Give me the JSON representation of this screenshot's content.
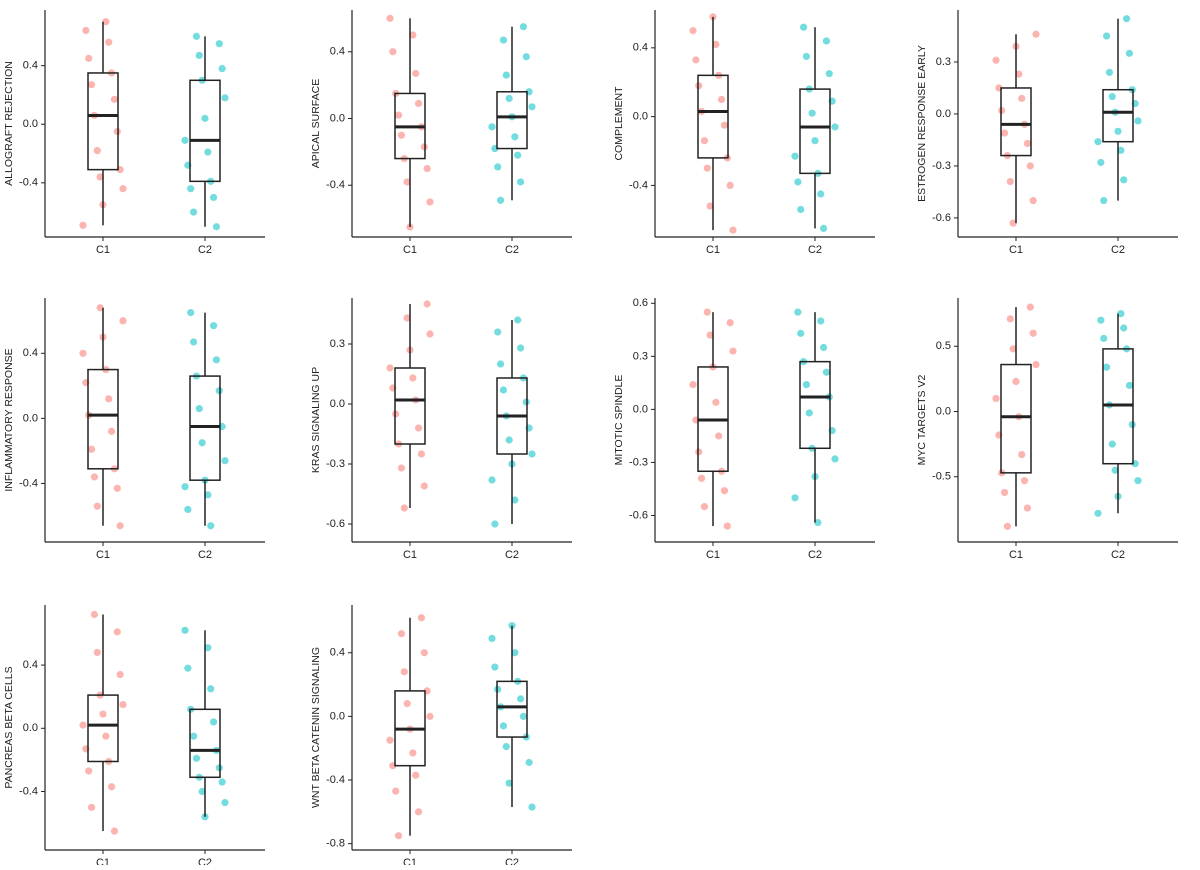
{
  "chart_data": [
    {
      "type": "box",
      "ylabel": "ALLOGRAFT REJECTION",
      "categories": [
        "C1",
        "C2"
      ],
      "ylim": [
        -0.77,
        0.78
      ],
      "yticks": [
        -0.4,
        {
          "value": 0,
          "label": "0.0"
        },
        0.4
      ],
      "boxes": [
        {
          "color": "#F8766D",
          "min": -0.69,
          "q1": -0.31,
          "median": 0.06,
          "q3": 0.35,
          "max": 0.7,
          "points": [
            -0.69,
            -0.55,
            -0.44,
            -0.36,
            -0.31,
            -0.18,
            -0.05,
            0.06,
            0.17,
            0.27,
            0.35,
            0.45,
            0.56,
            0.64,
            0.7
          ]
        },
        {
          "color": "#00BFC4",
          "min": -0.7,
          "q1": -0.39,
          "median": -0.11,
          "q3": 0.3,
          "max": 0.6,
          "points": [
            -0.7,
            -0.6,
            -0.5,
            -0.44,
            -0.39,
            -0.28,
            -0.19,
            -0.11,
            0.04,
            0.18,
            0.3,
            0.38,
            0.47,
            0.55,
            0.6
          ]
        }
      ]
    },
    {
      "type": "box",
      "ylabel": "APICAL SURFACE",
      "categories": [
        "C1",
        "C2"
      ],
      "ylim": [
        -0.71,
        0.65
      ],
      "yticks": [
        -0.4,
        {
          "value": 0,
          "label": "0.0"
        },
        0.4
      ],
      "boxes": [
        {
          "color": "#F8766D",
          "min": -0.65,
          "q1": -0.24,
          "median": -0.05,
          "q3": 0.15,
          "max": 0.6,
          "points": [
            -0.65,
            -0.5,
            -0.38,
            -0.3,
            -0.24,
            -0.17,
            -0.1,
            -0.05,
            0.02,
            0.09,
            0.15,
            0.27,
            0.4,
            0.5,
            0.6
          ]
        },
        {
          "color": "#00BFC4",
          "min": -0.49,
          "q1": -0.18,
          "median": 0.01,
          "q3": 0.16,
          "max": 0.55,
          "points": [
            -0.49,
            -0.38,
            -0.29,
            -0.22,
            -0.18,
            -0.11,
            -0.05,
            0.01,
            0.07,
            0.12,
            0.16,
            0.26,
            0.37,
            0.47,
            0.55
          ]
        }
      ]
    },
    {
      "type": "box",
      "ylabel": "COMPLEMENT",
      "categories": [
        "C1",
        "C2"
      ],
      "ylim": [
        -0.7,
        0.62
      ],
      "yticks": [
        -0.4,
        {
          "value": 0,
          "label": "0.0"
        },
        0.4
      ],
      "boxes": [
        {
          "color": "#F8766D",
          "min": -0.66,
          "q1": -0.24,
          "median": 0.03,
          "q3": 0.24,
          "max": 0.58,
          "points": [
            -0.66,
            -0.52,
            -0.4,
            -0.3,
            -0.24,
            -0.14,
            -0.05,
            0.03,
            0.1,
            0.18,
            0.24,
            0.33,
            0.42,
            0.5,
            0.58
          ]
        },
        {
          "color": "#00BFC4",
          "min": -0.65,
          "q1": -0.33,
          "median": -0.06,
          "q3": 0.16,
          "max": 0.52,
          "points": [
            -0.65,
            -0.54,
            -0.45,
            -0.38,
            -0.33,
            -0.23,
            -0.14,
            -0.06,
            0.02,
            0.09,
            0.16,
            0.25,
            0.35,
            0.44,
            0.52
          ]
        }
      ]
    },
    {
      "type": "box",
      "ylabel": "ESTROGEN RESPONSE EARLY",
      "categories": [
        "C1",
        "C2"
      ],
      "ylim": [
        -0.71,
        0.6
      ],
      "yticks": [
        -0.6,
        -0.3,
        {
          "value": 0,
          "label": "0.0"
        },
        0.3
      ],
      "boxes": [
        {
          "color": "#F8766D",
          "min": -0.63,
          "q1": -0.24,
          "median": -0.06,
          "q3": 0.15,
          "max": 0.46,
          "points": [
            -0.63,
            -0.5,
            -0.39,
            -0.3,
            -0.24,
            -0.17,
            -0.11,
            -0.06,
            0.02,
            0.09,
            0.15,
            0.23,
            0.31,
            0.39,
            0.46
          ]
        },
        {
          "color": "#00BFC4",
          "min": -0.5,
          "q1": -0.16,
          "median": 0.01,
          "q3": 0.14,
          "max": 0.55,
          "points": [
            -0.5,
            -0.38,
            -0.28,
            -0.21,
            -0.16,
            -0.1,
            -0.04,
            0.01,
            0.06,
            0.1,
            0.14,
            0.24,
            0.35,
            0.45,
            0.55
          ]
        }
      ]
    },
    {
      "type": "box",
      "ylabel": "INFLAMMATORY RESPONSE",
      "categories": [
        "C1",
        "C2"
      ],
      "ylim": [
        -0.76,
        0.74
      ],
      "yticks": [
        -0.4,
        {
          "value": 0,
          "label": "0.0"
        },
        0.4
      ],
      "boxes": [
        {
          "color": "#F8766D",
          "min": -0.66,
          "q1": -0.31,
          "median": 0.02,
          "q3": 0.3,
          "max": 0.68,
          "points": [
            -0.66,
            -0.54,
            -0.43,
            -0.36,
            -0.31,
            -0.19,
            -0.08,
            0.02,
            0.12,
            0.22,
            0.3,
            0.4,
            0.5,
            0.6,
            0.68
          ]
        },
        {
          "color": "#00BFC4",
          "min": -0.66,
          "q1": -0.38,
          "median": -0.05,
          "q3": 0.26,
          "max": 0.65,
          "points": [
            -0.66,
            -0.56,
            -0.47,
            -0.42,
            -0.38,
            -0.26,
            -0.15,
            -0.05,
            0.06,
            0.17,
            0.26,
            0.36,
            0.47,
            0.57,
            0.65
          ]
        }
      ]
    },
    {
      "type": "box",
      "ylabel": "KRAS SIGNALING UP",
      "categories": [
        "C1",
        "C2"
      ],
      "ylim": [
        -0.69,
        0.53
      ],
      "yticks": [
        -0.6,
        -0.3,
        {
          "value": 0,
          "label": "0.0"
        },
        0.3
      ],
      "boxes": [
        {
          "color": "#F8766D",
          "min": -0.52,
          "q1": -0.2,
          "median": 0.02,
          "q3": 0.18,
          "max": 0.5,
          "points": [
            -0.52,
            -0.41,
            -0.32,
            -0.25,
            -0.2,
            -0.12,
            -0.05,
            0.02,
            0.08,
            0.13,
            0.18,
            0.27,
            0.35,
            0.43,
            0.5
          ]
        },
        {
          "color": "#00BFC4",
          "min": -0.6,
          "q1": -0.25,
          "median": -0.06,
          "q3": 0.13,
          "max": 0.42,
          "points": [
            -0.6,
            -0.48,
            -0.38,
            -0.3,
            -0.25,
            -0.18,
            -0.12,
            -0.06,
            0.01,
            0.07,
            0.13,
            0.2,
            0.28,
            0.36,
            0.42
          ]
        }
      ]
    },
    {
      "type": "box",
      "ylabel": "MITOTIC SPINDLE",
      "categories": [
        "C1",
        "C2"
      ],
      "ylim": [
        -0.75,
        0.63
      ],
      "yticks": [
        -0.6,
        -0.3,
        {
          "value": 0,
          "label": "0.0"
        },
        0.3,
        0.6
      ],
      "boxes": [
        {
          "color": "#F8766D",
          "min": -0.66,
          "q1": -0.35,
          "median": -0.06,
          "q3": 0.24,
          "max": 0.55,
          "points": [
            -0.66,
            -0.55,
            -0.46,
            -0.39,
            -0.35,
            -0.24,
            -0.15,
            -0.06,
            0.04,
            0.14,
            0.24,
            0.33,
            0.42,
            0.49,
            0.55
          ]
        },
        {
          "color": "#00BFC4",
          "min": -0.64,
          "q1": -0.22,
          "median": 0.07,
          "q3": 0.27,
          "max": 0.55,
          "points": [
            -0.64,
            -0.5,
            -0.38,
            -0.28,
            -0.22,
            -0.12,
            -0.02,
            0.07,
            0.14,
            0.21,
            0.27,
            0.35,
            0.43,
            0.5,
            0.55
          ]
        }
      ]
    },
    {
      "type": "box",
      "ylabel": "MYC TARGETS V2",
      "categories": [
        "C1",
        "C2"
      ],
      "ylim": [
        -1.0,
        0.87
      ],
      "yticks": [
        -0.5,
        {
          "value": 0,
          "label": "0.0"
        },
        0.5
      ],
      "boxes": [
        {
          "color": "#F8766D",
          "min": -0.88,
          "q1": -0.47,
          "median": -0.04,
          "q3": 0.36,
          "max": 0.8,
          "points": [
            -0.88,
            -0.74,
            -0.62,
            -0.53,
            -0.47,
            -0.33,
            -0.18,
            -0.04,
            0.1,
            0.23,
            0.36,
            0.48,
            0.6,
            0.71,
            0.8
          ]
        },
        {
          "color": "#00BFC4",
          "min": -0.78,
          "q1": -0.4,
          "median": 0.05,
          "q3": 0.48,
          "max": 0.75,
          "points": [
            -0.78,
            -0.65,
            -0.53,
            -0.45,
            -0.4,
            -0.25,
            -0.1,
            0.05,
            0.2,
            0.34,
            0.48,
            0.56,
            0.64,
            0.7,
            0.75
          ]
        }
      ]
    },
    {
      "type": "box",
      "ylabel": "PANCREAS BETA CELLS",
      "categories": [
        "C1",
        "C2"
      ],
      "ylim": [
        -0.77,
        0.78
      ],
      "yticks": [
        -0.4,
        {
          "value": 0,
          "label": "0.0"
        },
        0.4
      ],
      "boxes": [
        {
          "color": "#F8766D",
          "min": -0.65,
          "q1": -0.21,
          "median": 0.02,
          "q3": 0.21,
          "max": 0.72,
          "points": [
            -0.65,
            -0.5,
            -0.37,
            -0.27,
            -0.21,
            -0.13,
            -0.05,
            0.02,
            0.09,
            0.15,
            0.21,
            0.34,
            0.48,
            0.61,
            0.72
          ]
        },
        {
          "color": "#00BFC4",
          "min": -0.56,
          "q1": -0.31,
          "median": -0.14,
          "q3": 0.12,
          "max": 0.62,
          "points": [
            -0.56,
            -0.47,
            -0.4,
            -0.34,
            -0.31,
            -0.25,
            -0.19,
            -0.14,
            -0.05,
            0.04,
            0.12,
            0.25,
            0.38,
            0.51,
            0.62
          ]
        }
      ]
    },
    {
      "type": "box",
      "ylabel": "WNT BETA CATENIN SIGNALING",
      "categories": [
        "C1",
        "C2"
      ],
      "ylim": [
        -0.84,
        0.7
      ],
      "yticks": [
        -0.8,
        -0.4,
        {
          "value": 0,
          "label": "0.0"
        },
        0.4
      ],
      "boxes": [
        {
          "color": "#F8766D",
          "min": -0.75,
          "q1": -0.31,
          "median": -0.08,
          "q3": 0.16,
          "max": 0.62,
          "points": [
            -0.75,
            -0.6,
            -0.47,
            -0.37,
            -0.31,
            -0.23,
            -0.15,
            -0.08,
            0,
            0.08,
            0.16,
            0.28,
            0.4,
            0.52,
            0.62
          ]
        },
        {
          "color": "#00BFC4",
          "min": -0.57,
          "q1": -0.13,
          "median": 0.06,
          "q3": 0.22,
          "max": 0.57,
          "points": [
            -0.57,
            -0.42,
            -0.29,
            -0.19,
            -0.13,
            -0.06,
            0,
            0.06,
            0.11,
            0.17,
            0.22,
            0.31,
            0.4,
            0.49,
            0.57
          ]
        }
      ]
    }
  ]
}
